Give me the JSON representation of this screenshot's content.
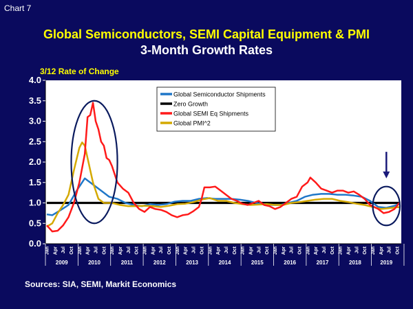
{
  "header": {
    "chart_label": "Chart 7",
    "title": "Global Semiconductors, SEMI Capital Equipment & PMI",
    "subtitle": "3-Month Growth Rates",
    "sources": "Sources: SIA, SEMI, Markit Economics"
  },
  "colors": {
    "background": "#0a0a5e",
    "plot_background": "#ffffff",
    "semis": "#1f77c8",
    "zero": "#000000",
    "semi_eq": "#ff1a1a",
    "pmi": "#d4a900",
    "ellipse": "#0a1a5e",
    "arrow": "#1a1a7a"
  },
  "chart_data": {
    "type": "line",
    "title": "Global Semiconductors, SEMI Capital Equipment & PMI",
    "subtitle": "3-Month Growth Rates",
    "ylabel": "3/12 Rate of Change",
    "xlabel": "",
    "ylim": [
      0,
      4
    ],
    "yticks": [
      0.0,
      0.5,
      1.0,
      1.5,
      2.0,
      2.5,
      3.0,
      3.5,
      4.0
    ],
    "ytick_labels": [
      "0.0",
      "0.5",
      "1.0",
      "1.5",
      "2.0",
      "2.5",
      "3.0",
      "3.5",
      "4.0"
    ],
    "x_start": "2009-01",
    "x_end": "2019-11",
    "month_tick_labels": [
      "Jan",
      "Apr",
      "Jul",
      "Oct"
    ],
    "year_labels": [
      "2009",
      "2010",
      "2011",
      "2012",
      "2013",
      "2014",
      "2015",
      "2016",
      "2017",
      "2018",
      "2019"
    ],
    "grid": false,
    "legend_position": "top-center",
    "series": [
      {
        "name": "Global Semiconductor Shipments",
        "color": "#1f77c8",
        "keypoints": [
          [
            "2009-01",
            0.72
          ],
          [
            "2009-03",
            0.7
          ],
          [
            "2009-06",
            0.82
          ],
          [
            "2009-09",
            0.95
          ],
          [
            "2009-12",
            1.3
          ],
          [
            "2010-03",
            1.6
          ],
          [
            "2010-06",
            1.45
          ],
          [
            "2010-09",
            1.3
          ],
          [
            "2010-12",
            1.15
          ],
          [
            "2011-03",
            1.1
          ],
          [
            "2011-06",
            1.0
          ],
          [
            "2011-09",
            0.95
          ],
          [
            "2011-12",
            0.92
          ],
          [
            "2012-03",
            0.97
          ],
          [
            "2012-06",
            0.95
          ],
          [
            "2012-09",
            0.97
          ],
          [
            "2012-12",
            1.03
          ],
          [
            "2013-03",
            1.05
          ],
          [
            "2013-06",
            1.05
          ],
          [
            "2013-09",
            1.1
          ],
          [
            "2013-12",
            1.12
          ],
          [
            "2014-03",
            1.1
          ],
          [
            "2014-06",
            1.1
          ],
          [
            "2014-09",
            1.1
          ],
          [
            "2014-12",
            1.08
          ],
          [
            "2015-03",
            1.05
          ],
          [
            "2015-06",
            1.0
          ],
          [
            "2015-09",
            0.97
          ],
          [
            "2015-12",
            0.95
          ],
          [
            "2016-03",
            0.95
          ],
          [
            "2016-06",
            1.0
          ],
          [
            "2016-09",
            1.05
          ],
          [
            "2016-12",
            1.15
          ],
          [
            "2017-03",
            1.2
          ],
          [
            "2017-06",
            1.22
          ],
          [
            "2017-09",
            1.22
          ],
          [
            "2017-12",
            1.2
          ],
          [
            "2018-03",
            1.2
          ],
          [
            "2018-06",
            1.18
          ],
          [
            "2018-09",
            1.15
          ],
          [
            "2018-12",
            1.05
          ],
          [
            "2019-03",
            0.9
          ],
          [
            "2019-06",
            0.88
          ],
          [
            "2019-09",
            0.93
          ],
          [
            "2019-11",
            0.98
          ]
        ]
      },
      {
        "name": "Zero Growth",
        "color": "#000000",
        "keypoints": [
          [
            "2009-01",
            1.0
          ],
          [
            "2019-11",
            1.0
          ]
        ]
      },
      {
        "name": "Global SEMI Eq Shipments",
        "color": "#ff1a1a",
        "keypoints": [
          [
            "2009-01",
            0.45
          ],
          [
            "2009-03",
            0.3
          ],
          [
            "2009-05",
            0.32
          ],
          [
            "2009-07",
            0.45
          ],
          [
            "2009-09",
            0.65
          ],
          [
            "2009-11",
            1.0
          ],
          [
            "2010-01",
            1.5
          ],
          [
            "2010-03",
            2.2
          ],
          [
            "2010-04",
            3.1
          ],
          [
            "2010-05",
            3.15
          ],
          [
            "2010-06",
            3.45
          ],
          [
            "2010-07",
            3.0
          ],
          [
            "2010-08",
            2.8
          ],
          [
            "2010-09",
            2.5
          ],
          [
            "2010-10",
            2.4
          ],
          [
            "2010-11",
            2.1
          ],
          [
            "2010-12",
            2.05
          ],
          [
            "2011-01",
            1.9
          ],
          [
            "2011-03",
            1.5
          ],
          [
            "2011-05",
            1.35
          ],
          [
            "2011-07",
            1.25
          ],
          [
            "2011-09",
            1.0
          ],
          [
            "2011-11",
            0.85
          ],
          [
            "2012-01",
            0.78
          ],
          [
            "2012-03",
            0.9
          ],
          [
            "2012-05",
            0.85
          ],
          [
            "2012-07",
            0.83
          ],
          [
            "2012-09",
            0.78
          ],
          [
            "2012-11",
            0.7
          ],
          [
            "2013-01",
            0.65
          ],
          [
            "2013-03",
            0.7
          ],
          [
            "2013-05",
            0.72
          ],
          [
            "2013-07",
            0.8
          ],
          [
            "2013-09",
            0.9
          ],
          [
            "2013-10",
            1.1
          ],
          [
            "2013-11",
            1.38
          ],
          [
            "2014-01",
            1.38
          ],
          [
            "2014-03",
            1.4
          ],
          [
            "2014-05",
            1.3
          ],
          [
            "2014-07",
            1.2
          ],
          [
            "2014-09",
            1.1
          ],
          [
            "2014-11",
            1.05
          ],
          [
            "2015-01",
            0.98
          ],
          [
            "2015-03",
            0.95
          ],
          [
            "2015-05",
            1.0
          ],
          [
            "2015-07",
            1.05
          ],
          [
            "2015-09",
            0.95
          ],
          [
            "2015-11",
            0.92
          ],
          [
            "2016-01",
            0.85
          ],
          [
            "2016-03",
            0.9
          ],
          [
            "2016-05",
            1.0
          ],
          [
            "2016-07",
            1.1
          ],
          [
            "2016-09",
            1.15
          ],
          [
            "2016-11",
            1.4
          ],
          [
            "2017-01",
            1.5
          ],
          [
            "2017-02",
            1.62
          ],
          [
            "2017-04",
            1.5
          ],
          [
            "2017-06",
            1.35
          ],
          [
            "2017-08",
            1.3
          ],
          [
            "2017-10",
            1.25
          ],
          [
            "2017-12",
            1.3
          ],
          [
            "2018-02",
            1.3
          ],
          [
            "2018-04",
            1.25
          ],
          [
            "2018-06",
            1.28
          ],
          [
            "2018-08",
            1.2
          ],
          [
            "2018-10",
            1.1
          ],
          [
            "2018-12",
            0.95
          ],
          [
            "2019-03",
            0.85
          ],
          [
            "2019-05",
            0.75
          ],
          [
            "2019-07",
            0.78
          ],
          [
            "2019-09",
            0.85
          ],
          [
            "2019-11",
            1.02
          ]
        ]
      },
      {
        "name": "Global PMI^2",
        "color": "#d4a900",
        "keypoints": [
          [
            "2009-01",
            0.42
          ],
          [
            "2009-03",
            0.5
          ],
          [
            "2009-05",
            0.75
          ],
          [
            "2009-07",
            0.95
          ],
          [
            "2009-09",
            1.2
          ],
          [
            "2009-11",
            1.8
          ],
          [
            "2010-01",
            2.35
          ],
          [
            "2010-02",
            2.48
          ],
          [
            "2010-03",
            2.4
          ],
          [
            "2010-04",
            2.1
          ],
          [
            "2010-05",
            1.8
          ],
          [
            "2010-06",
            1.5
          ],
          [
            "2010-07",
            1.3
          ],
          [
            "2010-08",
            1.1
          ],
          [
            "2010-10",
            1.0
          ],
          [
            "2011-01",
            1.0
          ],
          [
            "2011-04",
            0.95
          ],
          [
            "2011-07",
            0.92
          ],
          [
            "2011-10",
            0.92
          ],
          [
            "2012-01",
            0.93
          ],
          [
            "2012-04",
            0.92
          ],
          [
            "2012-07",
            0.9
          ],
          [
            "2012-10",
            0.93
          ],
          [
            "2013-01",
            0.97
          ],
          [
            "2013-04",
            0.98
          ],
          [
            "2013-07",
            1.02
          ],
          [
            "2013-10",
            1.08
          ],
          [
            "2014-01",
            1.12
          ],
          [
            "2014-04",
            1.05
          ],
          [
            "2014-07",
            1.05
          ],
          [
            "2014-10",
            1.0
          ],
          [
            "2015-01",
            0.97
          ],
          [
            "2015-04",
            0.95
          ],
          [
            "2015-07",
            0.96
          ],
          [
            "2015-10",
            0.97
          ],
          [
            "2016-01",
            0.95
          ],
          [
            "2016-04",
            0.95
          ],
          [
            "2016-07",
            1.0
          ],
          [
            "2016-10",
            1.02
          ],
          [
            "2017-01",
            1.05
          ],
          [
            "2017-04",
            1.08
          ],
          [
            "2017-07",
            1.1
          ],
          [
            "2017-10",
            1.1
          ],
          [
            "2018-01",
            1.05
          ],
          [
            "2018-04",
            1.02
          ],
          [
            "2018-07",
            0.98
          ],
          [
            "2018-10",
            0.95
          ],
          [
            "2019-01",
            0.9
          ],
          [
            "2019-04",
            0.85
          ],
          [
            "2019-07",
            0.87
          ],
          [
            "2019-11",
            0.9
          ]
        ]
      }
    ],
    "annotations": [
      {
        "type": "ellipse",
        "from": "2009-10",
        "to": "2011-03",
        "ymin": 0.5,
        "ymax": 3.5
      },
      {
        "type": "ellipse",
        "from": "2019-01",
        "to": "2019-11",
        "ymin": 0.45,
        "ymax": 1.4
      },
      {
        "type": "arrow",
        "at": "2019-06",
        "from_y": 2.25,
        "to_y": 1.6
      }
    ]
  }
}
